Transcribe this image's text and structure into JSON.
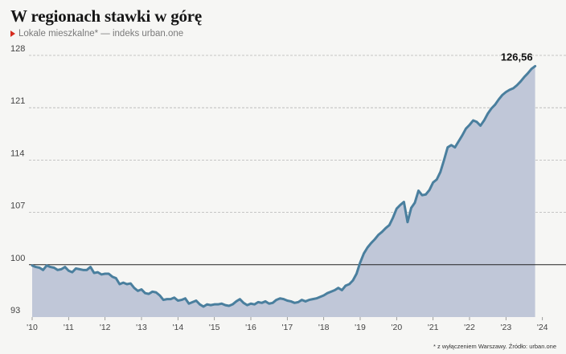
{
  "header": {
    "title": "W regionach stawki w górę",
    "subtitle": "Lokale mieszkalne* — indeks urban.one"
  },
  "footer": {
    "source": "* z wyłączeniem Warszawy. Źródło: urban.one"
  },
  "colors": {
    "line": "#4a7f9e",
    "area": "#c0c7d8",
    "baseline": "#222222",
    "grid": "#b5b5b5",
    "marker": "#d62b1e"
  },
  "chart_data": {
    "type": "area",
    "title": "W regionach stawki w górę",
    "subtitle": "Lokale mieszkalne* — indeks urban.one",
    "xlabel": "",
    "ylabel": "",
    "ylim": [
      93,
      128
    ],
    "yticks": [
      93,
      100,
      107,
      114,
      121,
      128
    ],
    "xlim": [
      2010.0,
      2024.25
    ],
    "xticks": [
      {
        "value": 2010,
        "label": "'10"
      },
      {
        "value": 2011,
        "label": "'11"
      },
      {
        "value": 2012,
        "label": "'12"
      },
      {
        "value": 2013,
        "label": "'13"
      },
      {
        "value": 2014,
        "label": "'14"
      },
      {
        "value": 2015,
        "label": "'15"
      },
      {
        "value": 2016,
        "label": "'16"
      },
      {
        "value": 2017,
        "label": "'17"
      },
      {
        "value": 2018,
        "label": "'18"
      },
      {
        "value": 2019,
        "label": "'19"
      },
      {
        "value": 2020,
        "label": "'20"
      },
      {
        "value": 2021,
        "label": "'21"
      },
      {
        "value": 2022,
        "label": "'22"
      },
      {
        "value": 2023,
        "label": "'23"
      },
      {
        "value": 2024,
        "label": "'24"
      }
    ],
    "reference_line": 100,
    "grid": "horizontal-dashed",
    "last_value_label": "126,56",
    "series": [
      {
        "values": [
          [
            2010.0,
            99.9
          ],
          [
            2010.1,
            99.7
          ],
          [
            2010.2,
            99.6
          ],
          [
            2010.3,
            99.3
          ],
          [
            2010.4,
            99.9
          ],
          [
            2010.5,
            99.7
          ],
          [
            2010.6,
            99.6
          ],
          [
            2010.7,
            99.3
          ],
          [
            2010.8,
            99.4
          ],
          [
            2010.9,
            99.7
          ],
          [
            2011.0,
            99.2
          ],
          [
            2011.1,
            99.0
          ],
          [
            2011.2,
            99.5
          ],
          [
            2011.3,
            99.4
          ],
          [
            2011.4,
            99.3
          ],
          [
            2011.5,
            99.3
          ],
          [
            2011.6,
            99.7
          ],
          [
            2011.7,
            98.9
          ],
          [
            2011.8,
            99.0
          ],
          [
            2011.9,
            98.7
          ],
          [
            2012.0,
            98.8
          ],
          [
            2012.1,
            98.8
          ],
          [
            2012.2,
            98.4
          ],
          [
            2012.3,
            98.2
          ],
          [
            2012.4,
            97.4
          ],
          [
            2012.5,
            97.6
          ],
          [
            2012.6,
            97.4
          ],
          [
            2012.7,
            97.5
          ],
          [
            2012.8,
            96.9
          ],
          [
            2012.9,
            96.5
          ],
          [
            2013.0,
            96.7
          ],
          [
            2013.1,
            96.2
          ],
          [
            2013.2,
            96.1
          ],
          [
            2013.3,
            96.4
          ],
          [
            2013.4,
            96.3
          ],
          [
            2013.5,
            95.9
          ],
          [
            2013.6,
            95.3
          ],
          [
            2013.7,
            95.4
          ],
          [
            2013.8,
            95.4
          ],
          [
            2013.9,
            95.6
          ],
          [
            2014.0,
            95.2
          ],
          [
            2014.1,
            95.3
          ],
          [
            2014.2,
            95.5
          ],
          [
            2014.3,
            94.8
          ],
          [
            2014.4,
            95.0
          ],
          [
            2014.5,
            95.2
          ],
          [
            2014.6,
            94.7
          ],
          [
            2014.7,
            94.4
          ],
          [
            2014.8,
            94.7
          ],
          [
            2014.9,
            94.6
          ],
          [
            2015.0,
            94.7
          ],
          [
            2015.1,
            94.7
          ],
          [
            2015.2,
            94.8
          ],
          [
            2015.3,
            94.6
          ],
          [
            2015.4,
            94.5
          ],
          [
            2015.5,
            94.7
          ],
          [
            2015.6,
            95.1
          ],
          [
            2015.7,
            95.4
          ],
          [
            2015.8,
            94.9
          ],
          [
            2015.9,
            94.6
          ],
          [
            2016.0,
            94.8
          ],
          [
            2016.1,
            94.7
          ],
          [
            2016.2,
            95.0
          ],
          [
            2016.3,
            94.9
          ],
          [
            2016.4,
            95.1
          ],
          [
            2016.5,
            94.8
          ],
          [
            2016.6,
            94.9
          ],
          [
            2016.7,
            95.3
          ],
          [
            2016.8,
            95.5
          ],
          [
            2016.9,
            95.4
          ],
          [
            2017.0,
            95.2
          ],
          [
            2017.1,
            95.1
          ],
          [
            2017.2,
            94.9
          ],
          [
            2017.3,
            95.0
          ],
          [
            2017.4,
            95.3
          ],
          [
            2017.5,
            95.1
          ],
          [
            2017.6,
            95.3
          ],
          [
            2017.7,
            95.4
          ],
          [
            2017.8,
            95.5
          ],
          [
            2017.9,
            95.7
          ],
          [
            2018.0,
            95.9
          ],
          [
            2018.1,
            96.2
          ],
          [
            2018.2,
            96.4
          ],
          [
            2018.3,
            96.6
          ],
          [
            2018.4,
            96.9
          ],
          [
            2018.5,
            96.6
          ],
          [
            2018.6,
            97.2
          ],
          [
            2018.7,
            97.4
          ],
          [
            2018.8,
            97.9
          ],
          [
            2018.9,
            98.8
          ],
          [
            2019.0,
            100.3
          ],
          [
            2019.1,
            101.5
          ],
          [
            2019.2,
            102.3
          ],
          [
            2019.3,
            102.9
          ],
          [
            2019.4,
            103.4
          ],
          [
            2019.5,
            104.0
          ],
          [
            2019.6,
            104.4
          ],
          [
            2019.7,
            104.9
          ],
          [
            2019.8,
            105.3
          ],
          [
            2019.9,
            106.3
          ],
          [
            2020.0,
            107.5
          ],
          [
            2020.1,
            108.0
          ],
          [
            2020.2,
            108.4
          ],
          [
            2020.3,
            105.7
          ],
          [
            2020.4,
            107.6
          ],
          [
            2020.5,
            108.3
          ],
          [
            2020.6,
            109.9
          ],
          [
            2020.7,
            109.3
          ],
          [
            2020.8,
            109.4
          ],
          [
            2020.9,
            110.0
          ],
          [
            2021.0,
            111.0
          ],
          [
            2021.1,
            111.4
          ],
          [
            2021.2,
            112.4
          ],
          [
            2021.3,
            114.0
          ],
          [
            2021.4,
            115.7
          ],
          [
            2021.5,
            116.0
          ],
          [
            2021.6,
            115.7
          ],
          [
            2021.7,
            116.5
          ],
          [
            2021.8,
            117.3
          ],
          [
            2021.9,
            118.2
          ],
          [
            2022.0,
            118.7
          ],
          [
            2022.1,
            119.3
          ],
          [
            2022.2,
            119.1
          ],
          [
            2022.3,
            118.6
          ],
          [
            2022.4,
            119.3
          ],
          [
            2022.5,
            120.2
          ],
          [
            2022.6,
            120.9
          ],
          [
            2022.7,
            121.4
          ],
          [
            2022.8,
            122.1
          ],
          [
            2022.9,
            122.7
          ],
          [
            2023.0,
            123.1
          ],
          [
            2023.1,
            123.4
          ],
          [
            2023.2,
            123.6
          ],
          [
            2023.3,
            124.0
          ],
          [
            2023.4,
            124.5
          ],
          [
            2023.5,
            125.1
          ],
          [
            2023.6,
            125.6
          ],
          [
            2023.7,
            126.2
          ],
          [
            2023.8,
            126.56
          ]
        ]
      }
    ]
  }
}
